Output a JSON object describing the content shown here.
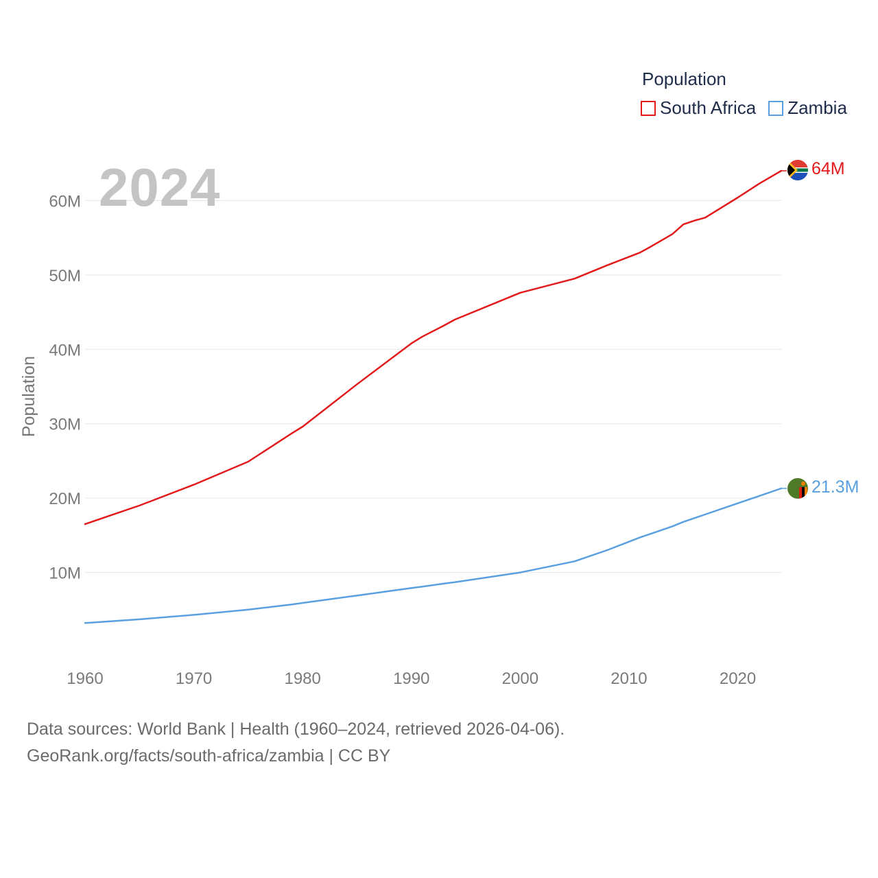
{
  "legend": {
    "title": "Population",
    "items": [
      {
        "name": "South Africa",
        "color": "#e31a1c"
      },
      {
        "name": "Zambia",
        "color": "#5aa0e0"
      }
    ]
  },
  "current_year": "2024",
  "footer": {
    "line1": "Data sources: World Bank | Health (1960–2024, retrieved 2026-04-06).",
    "line2": "GeoRank.org/facts/south-africa/zambia | CC BY"
  },
  "chart_data": {
    "type": "line",
    "title": "Population",
    "xlabel": "",
    "ylabel": "Population",
    "xlim": [
      1960,
      2024
    ],
    "ylim": [
      0,
      64000000
    ],
    "x_ticks": [
      1960,
      1970,
      1980,
      1990,
      2000,
      2010,
      2020
    ],
    "x_tick_labels": [
      "1960",
      "1970",
      "1980",
      "1990",
      "2000",
      "2010",
      "2020"
    ],
    "y_ticks": [
      10000000,
      20000000,
      30000000,
      40000000,
      50000000,
      60000000
    ],
    "y_tick_labels": [
      "10M",
      "20M",
      "30M",
      "40M",
      "50M",
      "60M"
    ],
    "grid": true,
    "x": [
      1960,
      1962,
      1965,
      1970,
      1975,
      1979,
      1980,
      1985,
      1990,
      1991,
      1993,
      1994,
      2000,
      2005,
      2008,
      2011,
      2012,
      2014,
      2015,
      2016,
      2017,
      2020,
      2022,
      2024
    ],
    "series": [
      {
        "name": "South Africa",
        "color": "#e31a1c",
        "end_label": "64M",
        "values": [
          16500000,
          17500000,
          19000000,
          21800000,
          24900000,
          28700000,
          29600000,
          35300000,
          40800000,
          41700000,
          43200000,
          44000000,
          47600000,
          49500000,
          51300000,
          53000000,
          53800000,
          55500000,
          56800000,
          57300000,
          57700000,
          60400000,
          62300000,
          64000000
        ]
      },
      {
        "name": "Zambia",
        "color": "#5aa0e0",
        "end_label": "21.3M",
        "values": [
          3200000,
          3400000,
          3700000,
          4300000,
          5000000,
          5700000,
          5900000,
          6900000,
          7900000,
          8100000,
          8500000,
          8700000,
          10000000,
          11500000,
          13000000,
          14700000,
          15200000,
          16200000,
          16800000,
          17300000,
          17800000,
          19300000,
          20300000,
          21300000
        ]
      }
    ]
  }
}
